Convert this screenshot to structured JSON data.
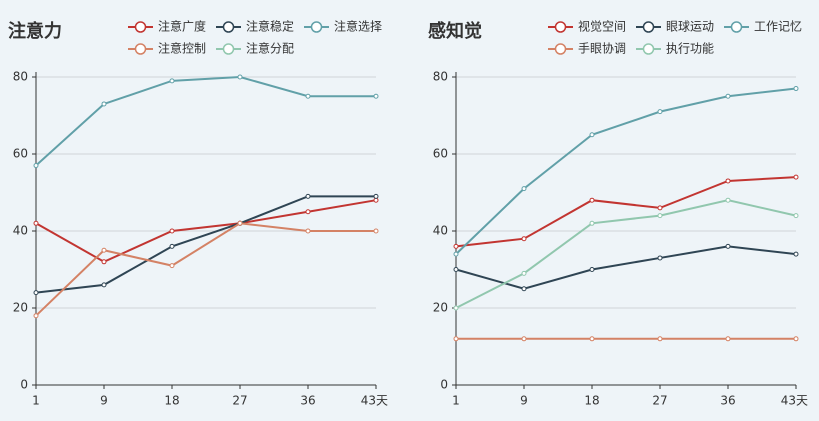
{
  "chart_data": [
    {
      "type": "line",
      "title": "注意力",
      "categories": [
        "1",
        "9",
        "18",
        "27",
        "36",
        "43"
      ],
      "xlabel": "天",
      "ylim": [
        0,
        80
      ],
      "yticks": [
        0,
        20,
        40,
        60,
        80
      ],
      "grid": true,
      "series": [
        {
          "name": "注意广度",
          "color": "#c23531",
          "values": [
            42,
            32,
            40,
            42,
            45,
            48
          ]
        },
        {
          "name": "注意稳定",
          "color": "#2f4554",
          "values": [
            24,
            26,
            36,
            42,
            49,
            49
          ]
        },
        {
          "name": "注意选择",
          "color": "#61a0a8",
          "values": [
            57,
            73,
            79,
            80,
            75,
            75
          ]
        },
        {
          "name": "注意控制",
          "color": "#d48265",
          "values": [
            18,
            35,
            31,
            42,
            40,
            40
          ]
        },
        {
          "name": "注意分配",
          "color": "#91c7ae",
          "values": [
            null,
            null,
            null,
            null,
            null,
            null
          ]
        }
      ]
    },
    {
      "type": "line",
      "title": "感知觉",
      "categories": [
        "1",
        "9",
        "18",
        "27",
        "36",
        "43"
      ],
      "xlabel": "天",
      "ylim": [
        0,
        80
      ],
      "yticks": [
        0,
        20,
        40,
        60,
        80
      ],
      "grid": true,
      "series": [
        {
          "name": "视觉空间",
          "color": "#c23531",
          "values": [
            36,
            38,
            48,
            46,
            53,
            54
          ]
        },
        {
          "name": "眼球运动",
          "color": "#2f4554",
          "values": [
            30,
            25,
            30,
            33,
            36,
            34
          ]
        },
        {
          "name": "工作记忆",
          "color": "#61a0a8",
          "values": [
            34,
            51,
            65,
            71,
            75,
            77
          ]
        },
        {
          "name": "手眼协调",
          "color": "#d48265",
          "values": [
            12,
            12,
            12,
            12,
            12,
            12
          ]
        },
        {
          "name": "执行功能",
          "color": "#91c7ae",
          "values": [
            20,
            29,
            42,
            44,
            48,
            44
          ]
        }
      ]
    }
  ]
}
